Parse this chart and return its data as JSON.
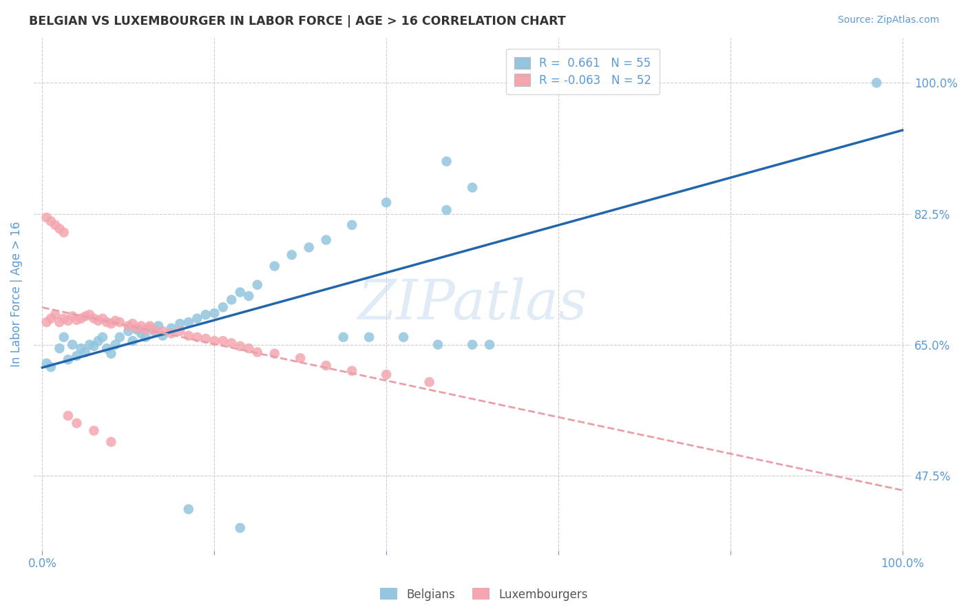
{
  "title": "BELGIAN VS LUXEMBOURGER IN LABOR FORCE | AGE > 16 CORRELATION CHART",
  "source": "Source: ZipAtlas.com",
  "ylabel": "In Labor Force | Age > 16",
  "watermark": "ZIPatlas",
  "xmin": 0.0,
  "xmax": 1.0,
  "ymin": 0.375,
  "ymax": 1.06,
  "yticks": [
    0.475,
    0.65,
    0.825,
    1.0
  ],
  "ytick_labels": [
    "47.5%",
    "65.0%",
    "82.5%",
    "100.0%"
  ],
  "xticks": [
    0.0,
    0.2,
    0.4,
    0.6,
    0.8,
    1.0
  ],
  "blue_R": 0.661,
  "blue_N": 55,
  "pink_R": -0.063,
  "pink_N": 52,
  "blue_color": "#92C5DE",
  "pink_color": "#F4A6B0",
  "blue_line_color": "#2166AC",
  "pink_line_color": "#E8A0A8",
  "axis_color": "#5B9BD5",
  "grid_color": "#CCCCCC",
  "background_color": "#FFFFFF",
  "blue_x": [
    0.005,
    0.01,
    0.02,
    0.025,
    0.03,
    0.035,
    0.04,
    0.045,
    0.05,
    0.055,
    0.06,
    0.065,
    0.07,
    0.075,
    0.08,
    0.085,
    0.09,
    0.1,
    0.105,
    0.11,
    0.115,
    0.12,
    0.125,
    0.13,
    0.135,
    0.14,
    0.15,
    0.16,
    0.17,
    0.18,
    0.19,
    0.2,
    0.21,
    0.22,
    0.23,
    0.24,
    0.25,
    0.27,
    0.29,
    0.31,
    0.33,
    0.36,
    0.4,
    0.47,
    0.47,
    0.5,
    0.97,
    0.17,
    0.23,
    0.35,
    0.38,
    0.42,
    0.46,
    0.5,
    0.52
  ],
  "blue_y": [
    0.625,
    0.62,
    0.645,
    0.66,
    0.63,
    0.65,
    0.635,
    0.645,
    0.64,
    0.65,
    0.648,
    0.655,
    0.66,
    0.645,
    0.638,
    0.65,
    0.66,
    0.668,
    0.655,
    0.67,
    0.665,
    0.66,
    0.672,
    0.668,
    0.675,
    0.662,
    0.672,
    0.678,
    0.68,
    0.685,
    0.69,
    0.692,
    0.7,
    0.71,
    0.72,
    0.715,
    0.73,
    0.755,
    0.77,
    0.78,
    0.79,
    0.81,
    0.84,
    0.895,
    0.83,
    0.86,
    1.0,
    0.43,
    0.405,
    0.66,
    0.66,
    0.66,
    0.65,
    0.65,
    0.65
  ],
  "pink_x": [
    0.005,
    0.01,
    0.015,
    0.02,
    0.025,
    0.03,
    0.035,
    0.04,
    0.045,
    0.05,
    0.055,
    0.06,
    0.065,
    0.07,
    0.075,
    0.08,
    0.085,
    0.09,
    0.1,
    0.105,
    0.11,
    0.115,
    0.12,
    0.125,
    0.13,
    0.14,
    0.15,
    0.16,
    0.17,
    0.18,
    0.19,
    0.2,
    0.21,
    0.22,
    0.23,
    0.24,
    0.25,
    0.27,
    0.3,
    0.33,
    0.36,
    0.4,
    0.45,
    0.005,
    0.01,
    0.015,
    0.02,
    0.025,
    0.03,
    0.04,
    0.06,
    0.08
  ],
  "pink_y": [
    0.68,
    0.685,
    0.69,
    0.68,
    0.685,
    0.682,
    0.688,
    0.683,
    0.685,
    0.688,
    0.69,
    0.685,
    0.682,
    0.685,
    0.68,
    0.678,
    0.682,
    0.68,
    0.675,
    0.678,
    0.672,
    0.675,
    0.67,
    0.675,
    0.67,
    0.668,
    0.665,
    0.668,
    0.662,
    0.66,
    0.658,
    0.655,
    0.655,
    0.652,
    0.648,
    0.645,
    0.64,
    0.638,
    0.632,
    0.622,
    0.615,
    0.61,
    0.6,
    0.82,
    0.815,
    0.81,
    0.805,
    0.8,
    0.555,
    0.545,
    0.535,
    0.52
  ]
}
